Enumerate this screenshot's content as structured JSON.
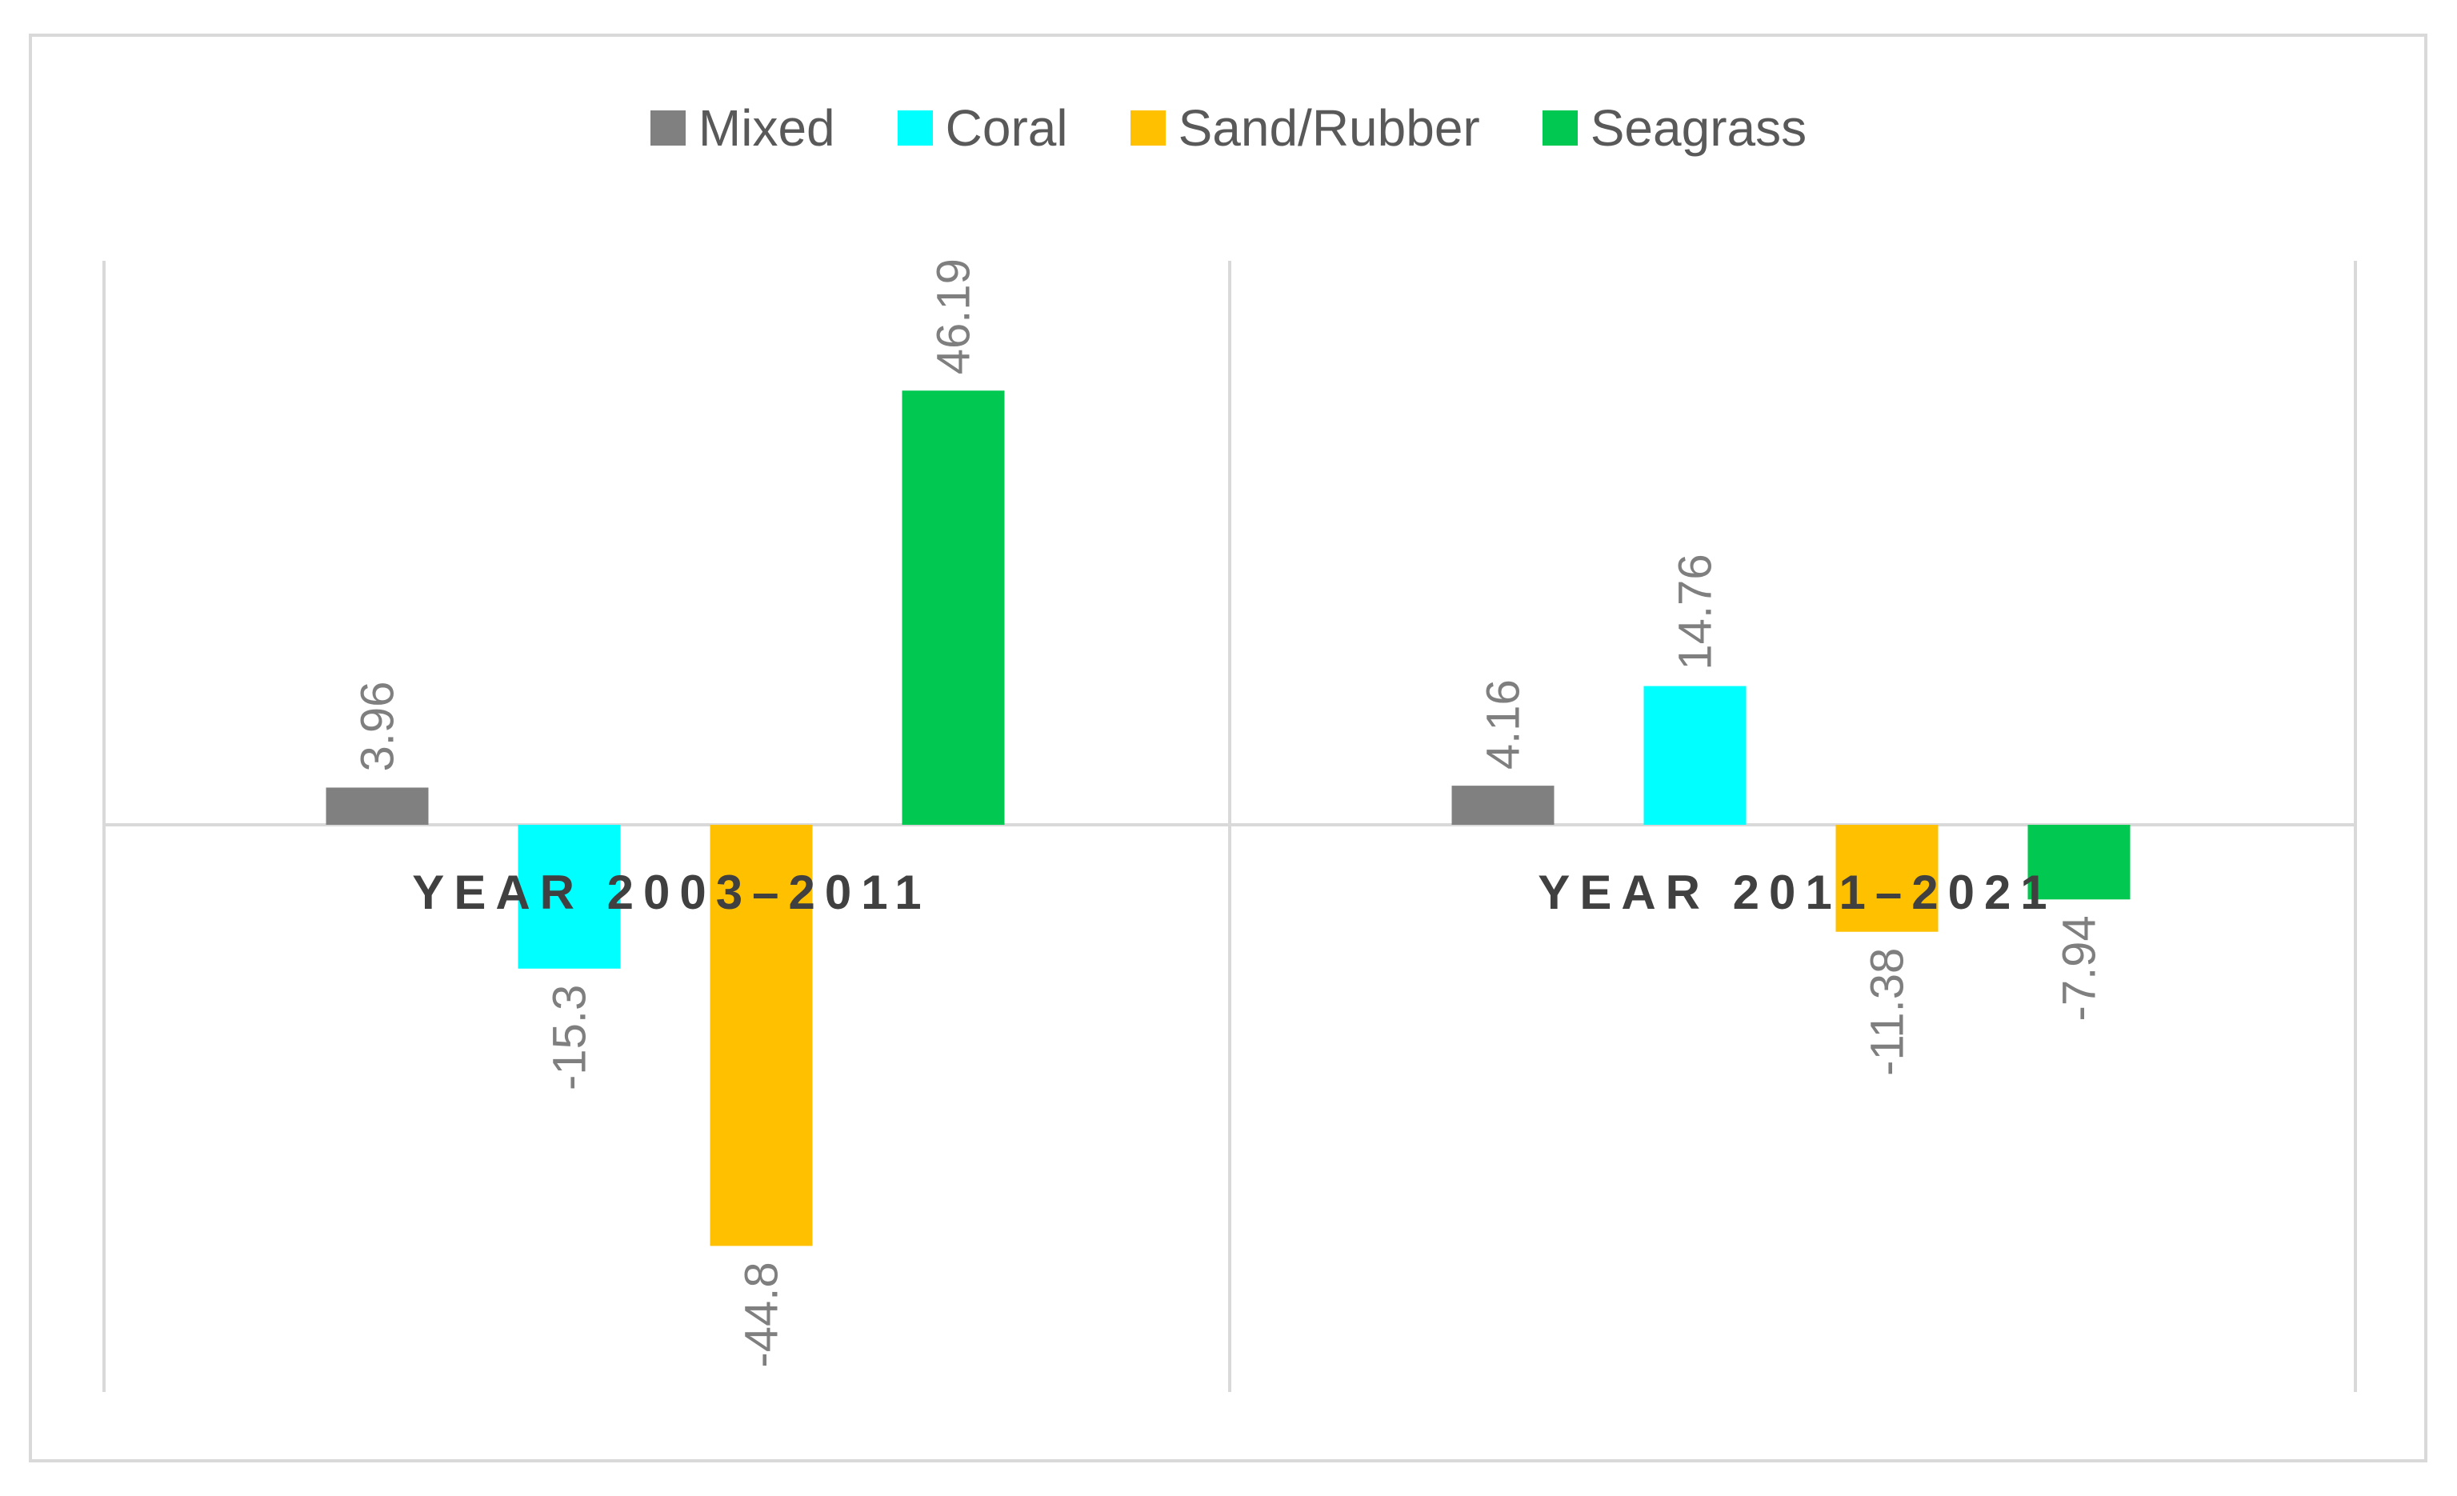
{
  "chart_data": {
    "type": "bar",
    "title": "",
    "xlabel": "",
    "ylabel": "",
    "ylim": [
      -60,
      60
    ],
    "grid": false,
    "legend_position": "top-center",
    "categories": [
      "YEAR 2003–2011",
      "YEAR 2011–2021"
    ],
    "value_label_format": [
      "3.96",
      "4.16",
      "-15.3",
      "14.76",
      "-44.8",
      "-11.38",
      "46.19",
      "-7.94"
    ],
    "series": [
      {
        "name": "Mixed",
        "color": "#808080",
        "values": [
          3.96,
          4.16
        ],
        "labels": [
          "3.96",
          "4.16"
        ]
      },
      {
        "name": "Coral",
        "color": "#00ffff",
        "values": [
          -15.3,
          14.76
        ],
        "labels": [
          "-15.3",
          "14.76"
        ]
      },
      {
        "name": "Sand/Rubber",
        "color": "#ffc000",
        "values": [
          -44.8,
          -11.38
        ],
        "labels": [
          "-44.8",
          "-11.38"
        ]
      },
      {
        "name": "Seagrass",
        "color": "#00c850",
        "values": [
          46.19,
          -7.94
        ],
        "labels": [
          "46.19",
          "-7.94"
        ]
      }
    ]
  }
}
